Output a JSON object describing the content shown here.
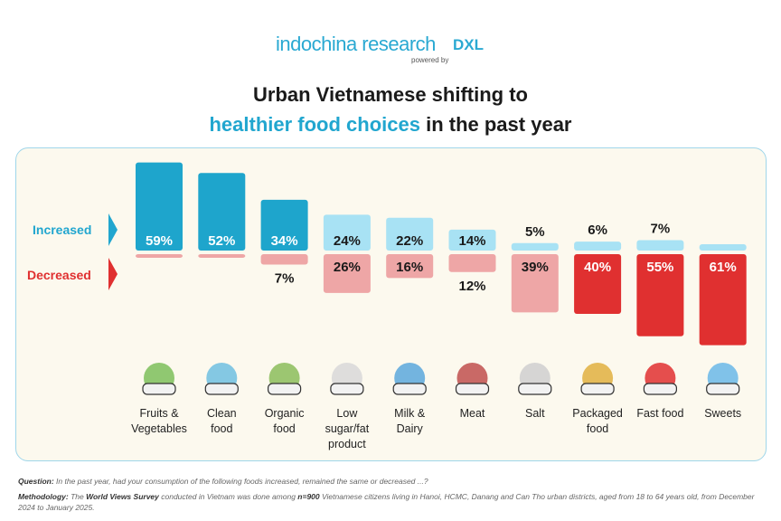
{
  "brand": {
    "name": "indochina research",
    "powered_by": "powered by",
    "partner": "DXL"
  },
  "title": {
    "line1": "Urban Vietnamese shifting to",
    "line2_highlight": "healthier food choices",
    "line2_rest": " in the past year"
  },
  "chart_data": {
    "type": "bar",
    "title": "Urban Vietnamese shifting to healthier food choices in the past year",
    "categories": [
      "Fruits & Vegetables",
      "Clean food",
      "Organic food",
      "Low sugar/fat product",
      "Milk & Dairy",
      "Meat",
      "Salt",
      "Packaged food",
      "Fast food",
      "Sweets"
    ],
    "series": [
      {
        "name": "Increased",
        "values": [
          59,
          52,
          34,
          24,
          22,
          14,
          5,
          6,
          7,
          0
        ],
        "labels": [
          "59%",
          "52%",
          "34%",
          "24%",
          "22%",
          "14%",
          "5%",
          "6%",
          "7%",
          ""
        ],
        "color": "#1ea5cc",
        "light_color": "#a8e2f4"
      },
      {
        "name": "Decreased",
        "values": [
          2,
          2,
          7,
          26,
          16,
          12,
          39,
          40,
          55,
          61
        ],
        "labels": [
          "",
          "",
          "7%",
          "26%",
          "16%",
          "12%",
          "39%",
          "40%",
          "55%",
          "61%"
        ],
        "color": "#e03030",
        "light_color": "#eea6a6"
      }
    ],
    "unit": "%"
  },
  "category_lines": [
    [
      "Fruits &",
      "Vegetables"
    ],
    [
      "Clean",
      "food"
    ],
    [
      "Organic",
      "food"
    ],
    [
      "Low",
      "sugar/fat",
      "product"
    ],
    [
      "Milk &",
      "Dairy"
    ],
    [
      "Meat"
    ],
    [
      "Salt"
    ],
    [
      "Packaged",
      "food"
    ],
    [
      "Fast food"
    ],
    [
      "Sweets"
    ]
  ],
  "notes": {
    "question_label": "Question:",
    "question": " In the past year, had your consumption of the following foods increased, remained the same or decreased ...?",
    "method_label": "Methodology:",
    "method_1": " The ",
    "method_survey": "World Views Survey",
    "method_2": " conducted in Vietnam was done among ",
    "method_n": "n=900",
    "method_3": " Vietnamese citizens living in Hanoi, HCMC, Danang and Can Tho urban districts, aged from 18 to 64 years old, from December 2024 to January 2025."
  }
}
